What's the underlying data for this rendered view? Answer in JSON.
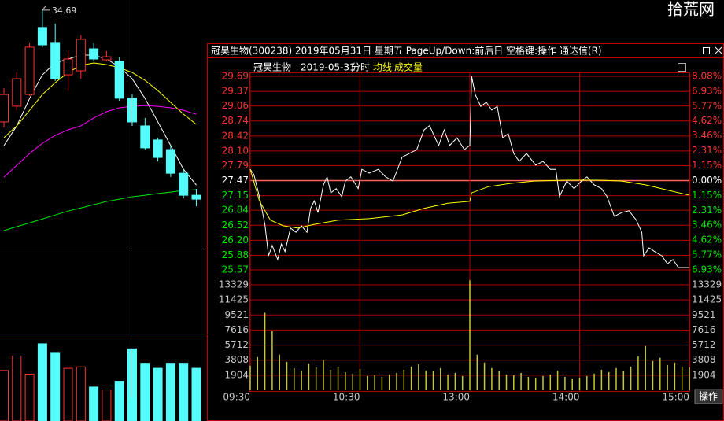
{
  "watermark": "拾荒网",
  "window": {
    "title": "冠昊生物(300238) 2019年05月31日 星期五 PageUp/Down:前后日 空格键:操作 通达信(R)",
    "button": "操作"
  },
  "chart_data": [
    {
      "type": "candlestick",
      "high_label": "34.69",
      "ylim": [
        23.36,
        35.18
      ],
      "up_color": "#ff3232",
      "down_color": "#54fcfc",
      "candles": {
        "open": [
          29.31,
          30.07,
          30.63,
          33.86,
          33.1,
          31.58,
          31.77,
          32.83,
          32.3,
          32.23,
          30.45,
          29.12,
          28.44,
          27.98,
          26.84,
          25.78
        ],
        "high": [
          30.94,
          31.7,
          33.1,
          34.69,
          34.05,
          32.72,
          33.48,
          33.1,
          32.72,
          32.45,
          30.63,
          29.5,
          28.55,
          28.17,
          27.03,
          26.09
        ],
        "low": [
          29.04,
          29.88,
          30.56,
          32.91,
          31.28,
          30.82,
          31.39,
          32.23,
          32.23,
          30.33,
          29.12,
          27.98,
          27.41,
          26.66,
          25.63,
          25.25
        ],
        "close": [
          30.63,
          31.39,
          32.91,
          33.02,
          31.39,
          32.34,
          33.29,
          32.34,
          32.45,
          30.45,
          29.31,
          28.06,
          27.6,
          26.84,
          25.78,
          25.59
        ]
      },
      "ma": [
        {
          "color": "#ffffff",
          "values": [
            28.17,
            29.12,
            30.44,
            31.58,
            32.15,
            32.34,
            32.53,
            32.53,
            32.34,
            31.96,
            31.39,
            30.44,
            29.31,
            28.17,
            27.03,
            26.27
          ]
        },
        {
          "color": "#ffff00",
          "values": [
            28.55,
            29.12,
            29.87,
            30.63,
            31.2,
            31.69,
            32.03,
            32.15,
            32.07,
            31.92,
            31.69,
            31.31,
            30.82,
            30.25,
            29.68,
            29.19
          ]
        },
        {
          "color": "#ff00ff",
          "values": [
            26.65,
            27.22,
            27.79,
            28.28,
            28.66,
            28.93,
            29.12,
            29.5,
            29.8,
            29.99,
            30.06,
            30.1,
            30.06,
            29.99,
            29.87,
            29.68
          ]
        },
        {
          "color": "#00e600",
          "values": [
            24.08,
            24.27,
            24.45,
            24.64,
            24.83,
            25.02,
            25.17,
            25.33,
            25.48,
            25.59,
            25.71,
            25.78,
            25.86,
            25.93,
            26.01,
            26.05
          ]
        }
      ],
      "volume": {
        "ylim": [
          0,
          120
        ],
        "values": [
          70,
          90,
          65,
          107,
          95,
          73,
          75,
          47,
          43,
          55,
          100,
          80,
          73,
          80,
          80,
          73
        ]
      }
    },
    {
      "type": "intraday",
      "stock": "冠昊生物",
      "date": "2019-05-31",
      "xlim": [
        0,
        240
      ],
      "xticks": [
        {
          "value": 0,
          "label": "09:30"
        },
        {
          "value": 60,
          "label": "10:30"
        },
        {
          "value": 120,
          "label": "13:00"
        },
        {
          "value": 180,
          "label": "14:00"
        },
        {
          "value": 240,
          "label": "15:00"
        }
      ],
      "ylim": [
        25.57,
        29.69
      ],
      "yticks": [
        29.69,
        29.37,
        29.06,
        28.74,
        28.42,
        {
          "value": 28.1,
          "label": "28.10"
        },
        27.79,
        27.47,
        27.15,
        26.84,
        26.52,
        {
          "value": 26.2,
          "label": "26.20"
        },
        25.88,
        25.57
      ],
      "y2lim": [
        -6.93,
        8.08
      ],
      "y2ticks": [
        {
          "value": 8.08,
          "label": "8.08%"
        },
        {
          "value": 6.93,
          "label": "6.93%"
        },
        {
          "value": 5.77,
          "label": "5.77%"
        },
        {
          "value": 4.62,
          "label": "4.62%"
        },
        {
          "value": 3.46,
          "label": "3.46%"
        },
        {
          "value": 2.31,
          "label": "2.31%"
        },
        {
          "value": 1.15,
          "label": "1.15%"
        },
        {
          "value": 0,
          "label": "0.00%"
        },
        {
          "value": -1.15,
          "label": "1.15%"
        },
        {
          "value": -2.31,
          "label": "2.31%"
        },
        {
          "value": -3.46,
          "label": "3.46%"
        },
        {
          "value": -4.62,
          "label": "4.62%"
        },
        {
          "value": -5.77,
          "label": "5.77%"
        },
        {
          "value": -6.93,
          "label": "6.93%"
        }
      ],
      "up_color": "#ff3232",
      "down_color": "#00e600",
      "grid_color": "#b00000",
      "series": [
        {
          "name": "分时",
          "color": "#ffffff",
          "x": [
            0,
            2,
            5,
            8,
            10,
            12,
            15,
            17,
            19,
            22,
            25,
            28,
            31,
            33,
            35,
            37,
            40,
            42,
            44,
            47,
            50,
            52,
            55,
            59,
            61,
            65,
            70,
            74,
            78,
            83,
            87,
            91,
            95,
            98,
            101,
            103,
            106,
            109,
            113,
            117,
            120,
            121,
            123,
            126,
            129,
            132,
            135,
            138,
            141,
            144,
            147,
            151,
            156,
            160,
            164,
            167,
            169,
            173,
            177,
            181,
            184,
            188,
            192,
            195,
            199,
            203,
            207,
            211,
            214,
            215,
            218,
            221,
            225,
            228,
            231,
            234,
            237,
            240
          ],
          "values": [
            27.71,
            27.6,
            27.13,
            26.54,
            25.87,
            26.09,
            25.79,
            26.12,
            25.96,
            26.46,
            26.37,
            26.51,
            26.37,
            26.88,
            27.04,
            26.79,
            27.38,
            27.55,
            27.21,
            27.3,
            27.13,
            27.46,
            27.55,
            27.3,
            27.71,
            27.63,
            27.71,
            27.55,
            27.46,
            27.97,
            28.05,
            28.13,
            28.55,
            28.64,
            28.38,
            28.22,
            28.55,
            28.22,
            28.38,
            28.13,
            28.22,
            29.69,
            29.3,
            29.05,
            29.14,
            28.97,
            29.05,
            28.38,
            28.47,
            28.05,
            27.88,
            28.05,
            27.8,
            27.88,
            27.71,
            27.71,
            27.13,
            27.46,
            27.3,
            27.46,
            27.55,
            27.38,
            27.3,
            27.13,
            26.71,
            26.79,
            26.83,
            26.63,
            26.37,
            25.87,
            26.04,
            25.96,
            25.87,
            25.7,
            25.79,
            25.62,
            25.62,
            25.62
          ]
        },
        {
          "name": "均线",
          "color": "#ffff00",
          "x": [
            0,
            5,
            11,
            18,
            26,
            35,
            48,
            65,
            83,
            95,
            108,
            120,
            121,
            130,
            142,
            155,
            173,
            190,
            203,
            216,
            229,
            240
          ],
          "values": [
            27.71,
            27.04,
            26.63,
            26.51,
            26.46,
            26.54,
            26.63,
            26.66,
            26.74,
            26.88,
            26.99,
            27.03,
            27.21,
            27.34,
            27.41,
            27.46,
            27.48,
            27.48,
            27.46,
            27.38,
            27.26,
            27.16
          ]
        }
      ],
      "volume": {
        "name": "成交量",
        "color": "#c8c832",
        "ylim": [
          0,
          13329
        ],
        "yticks": [
          13329,
          11425,
          9521,
          7616,
          5712,
          3808,
          1904
        ],
        "x": [
          0,
          4,
          8,
          12,
          16,
          20,
          24,
          28,
          32,
          36,
          40,
          44,
          48,
          52,
          56,
          60,
          64,
          68,
          72,
          76,
          80,
          84,
          88,
          92,
          96,
          100,
          104,
          108,
          112,
          116,
          120,
          124,
          128,
          132,
          136,
          140,
          144,
          148,
          152,
          156,
          160,
          164,
          168,
          172,
          176,
          180,
          184,
          188,
          192,
          196,
          200,
          204,
          208,
          212,
          216,
          220,
          224,
          228,
          232,
          236,
          240
        ],
        "values": [
          3100,
          4200,
          9800,
          7500,
          4500,
          3600,
          2800,
          2500,
          3400,
          2900,
          3800,
          2600,
          3000,
          2300,
          2100,
          2700,
          1800,
          1900,
          1700,
          2000,
          2200,
          2600,
          3000,
          3300,
          2500,
          2400,
          2800,
          2000,
          2200,
          1800,
          13900,
          4500,
          3500,
          2800,
          2400,
          2000,
          1900,
          2200,
          1700,
          1600,
          1800,
          2000,
          2500,
          1700,
          1500,
          1600,
          1800,
          2100,
          2600,
          2300,
          2800,
          2400,
          3000,
          4300,
          5600,
          3700,
          4100,
          3200,
          3500,
          3000,
          2900
        ]
      }
    }
  ]
}
